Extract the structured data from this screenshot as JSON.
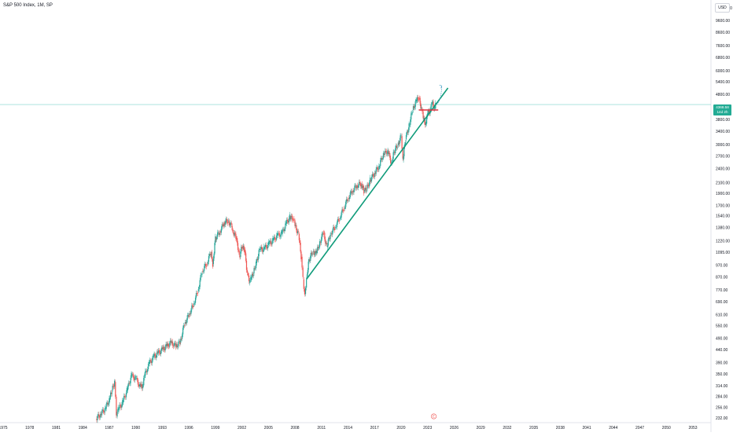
{
  "header": {
    "title": "S&P 500 Index, 1M, SP"
  },
  "currency": "USD",
  "last_price": {
    "value": "4368.58",
    "countdown": "14d 2h"
  },
  "event_marker": "E",
  "colors": {
    "up": "#26a69a",
    "down": "#ef5350",
    "trendline": "#0f9b7a",
    "resistance": "#e0313f",
    "projection": "#4aa3c8",
    "price_line": "#7fd3cd"
  },
  "chart_data": {
    "type": "candlestick",
    "scale": "log",
    "ylim": [
      222,
      11000
    ],
    "xlim": [
      1975,
      2056
    ],
    "y_ticks": [
      "10800.00",
      "9600.00",
      "8600.00",
      "7600.00",
      "6800.00",
      "6000.00",
      "5400.00",
      "4800.00",
      "4300.00",
      "3800.00",
      "3400.00",
      "3000.00",
      "2700.00",
      "2400.00",
      "2100.00",
      "1900.00",
      "1700.00",
      "1540.00",
      "1380.00",
      "1220.00",
      "1095.00",
      "970.00",
      "870.00",
      "770.00",
      "690.00",
      "610.00",
      "550.00",
      "490.00",
      "440.00",
      "390.00",
      "350.00",
      "314.00",
      "284.00",
      "256.00",
      "232.00"
    ],
    "x_ticks": [
      "1975",
      "1978",
      "1981",
      "1984",
      "1987",
      "1990",
      "1993",
      "1996",
      "1999",
      "2002",
      "2005",
      "2008",
      "2011",
      "2014",
      "2017",
      "2020",
      "2023",
      "2026",
      "2029",
      "2032",
      "2035",
      "2038",
      "2041",
      "2044",
      "2047",
      "2050",
      "2053"
    ],
    "series": [
      {
        "key": "sp500",
        "values": [
          [
            1985.5,
            230
          ],
          [
            1986.0,
            240
          ],
          [
            1986.5,
            252
          ],
          [
            1987.0,
            275
          ],
          [
            1987.3,
            300
          ],
          [
            1987.6,
            325
          ],
          [
            1987.8,
            235
          ],
          [
            1988.0,
            250
          ],
          [
            1988.5,
            268
          ],
          [
            1989.0,
            300
          ],
          [
            1989.5,
            345
          ],
          [
            1990.0,
            335
          ],
          [
            1990.5,
            310
          ],
          [
            1990.8,
            315
          ],
          [
            1991.0,
            345
          ],
          [
            1991.5,
            385
          ],
          [
            1992.0,
            410
          ],
          [
            1992.5,
            425
          ],
          [
            1993.0,
            440
          ],
          [
            1993.5,
            455
          ],
          [
            1994.0,
            470
          ],
          [
            1994.5,
            455
          ],
          [
            1995.0,
            470
          ],
          [
            1995.5,
            560
          ],
          [
            1996.0,
            610
          ],
          [
            1996.5,
            670
          ],
          [
            1997.0,
            760
          ],
          [
            1997.5,
            920
          ],
          [
            1998.0,
            980
          ],
          [
            1998.5,
            1100
          ],
          [
            1998.7,
            980
          ],
          [
            1999.0,
            1250
          ],
          [
            1999.5,
            1330
          ],
          [
            2000.0,
            1450
          ],
          [
            2000.4,
            1470
          ],
          [
            2000.8,
            1400
          ],
          [
            2001.0,
            1320
          ],
          [
            2001.4,
            1250
          ],
          [
            2001.7,
            1050
          ],
          [
            2002.0,
            1150
          ],
          [
            2002.3,
            1120
          ],
          [
            2002.6,
            900
          ],
          [
            2002.8,
            820
          ],
          [
            2003.0,
            850
          ],
          [
            2003.3,
            900
          ],
          [
            2003.6,
            990
          ],
          [
            2004.0,
            1120
          ],
          [
            2004.5,
            1130
          ],
          [
            2005.0,
            1180
          ],
          [
            2005.5,
            1220
          ],
          [
            2006.0,
            1280
          ],
          [
            2006.5,
            1300
          ],
          [
            2007.0,
            1430
          ],
          [
            2007.4,
            1520
          ],
          [
            2007.8,
            1500
          ],
          [
            2008.0,
            1400
          ],
          [
            2008.4,
            1300
          ],
          [
            2008.7,
            1050
          ],
          [
            2008.9,
            850
          ],
          [
            2009.1,
            740
          ],
          [
            2009.3,
            870
          ],
          [
            2009.6,
            1020
          ],
          [
            2010.0,
            1100
          ],
          [
            2010.4,
            1080
          ],
          [
            2010.8,
            1200
          ],
          [
            2011.2,
            1320
          ],
          [
            2011.6,
            1150
          ],
          [
            2012.0,
            1300
          ],
          [
            2012.5,
            1380
          ],
          [
            2013.0,
            1500
          ],
          [
            2013.5,
            1650
          ],
          [
            2014.0,
            1820
          ],
          [
            2014.5,
            1950
          ],
          [
            2015.0,
            2050
          ],
          [
            2015.5,
            2080
          ],
          [
            2015.8,
            1940
          ],
          [
            2016.1,
            1980
          ],
          [
            2016.5,
            2150
          ],
          [
            2017.0,
            2300
          ],
          [
            2017.5,
            2450
          ],
          [
            2018.0,
            2750
          ],
          [
            2018.5,
            2820
          ],
          [
            2018.9,
            2530
          ],
          [
            2019.2,
            2800
          ],
          [
            2019.6,
            2980
          ],
          [
            2020.0,
            3250
          ],
          [
            2020.2,
            2600
          ],
          [
            2020.5,
            3150
          ],
          [
            2020.9,
            3600
          ],
          [
            2021.3,
            4150
          ],
          [
            2021.7,
            4500
          ],
          [
            2022.0,
            4650
          ],
          [
            2022.3,
            4200
          ],
          [
            2022.5,
            3800
          ],
          [
            2022.8,
            3650
          ],
          [
            2023.0,
            4000
          ],
          [
            2023.3,
            4130
          ],
          [
            2023.5,
            4450
          ],
          [
            2023.8,
            4200
          ],
          [
            2023.9,
            4368
          ]
        ]
      }
    ],
    "annotations": {
      "trendline": [
        [
          2009.3,
          850
        ],
        [
          2025.3,
          5100
        ]
      ],
      "resistance": {
        "y": 4150,
        "x": [
          2022.0,
          2024.2
        ]
      },
      "projection": [
        [
          2024.0,
          4370
        ],
        [
          2024.6,
          5200
        ]
      ],
      "current_price": 4368.58
    }
  }
}
